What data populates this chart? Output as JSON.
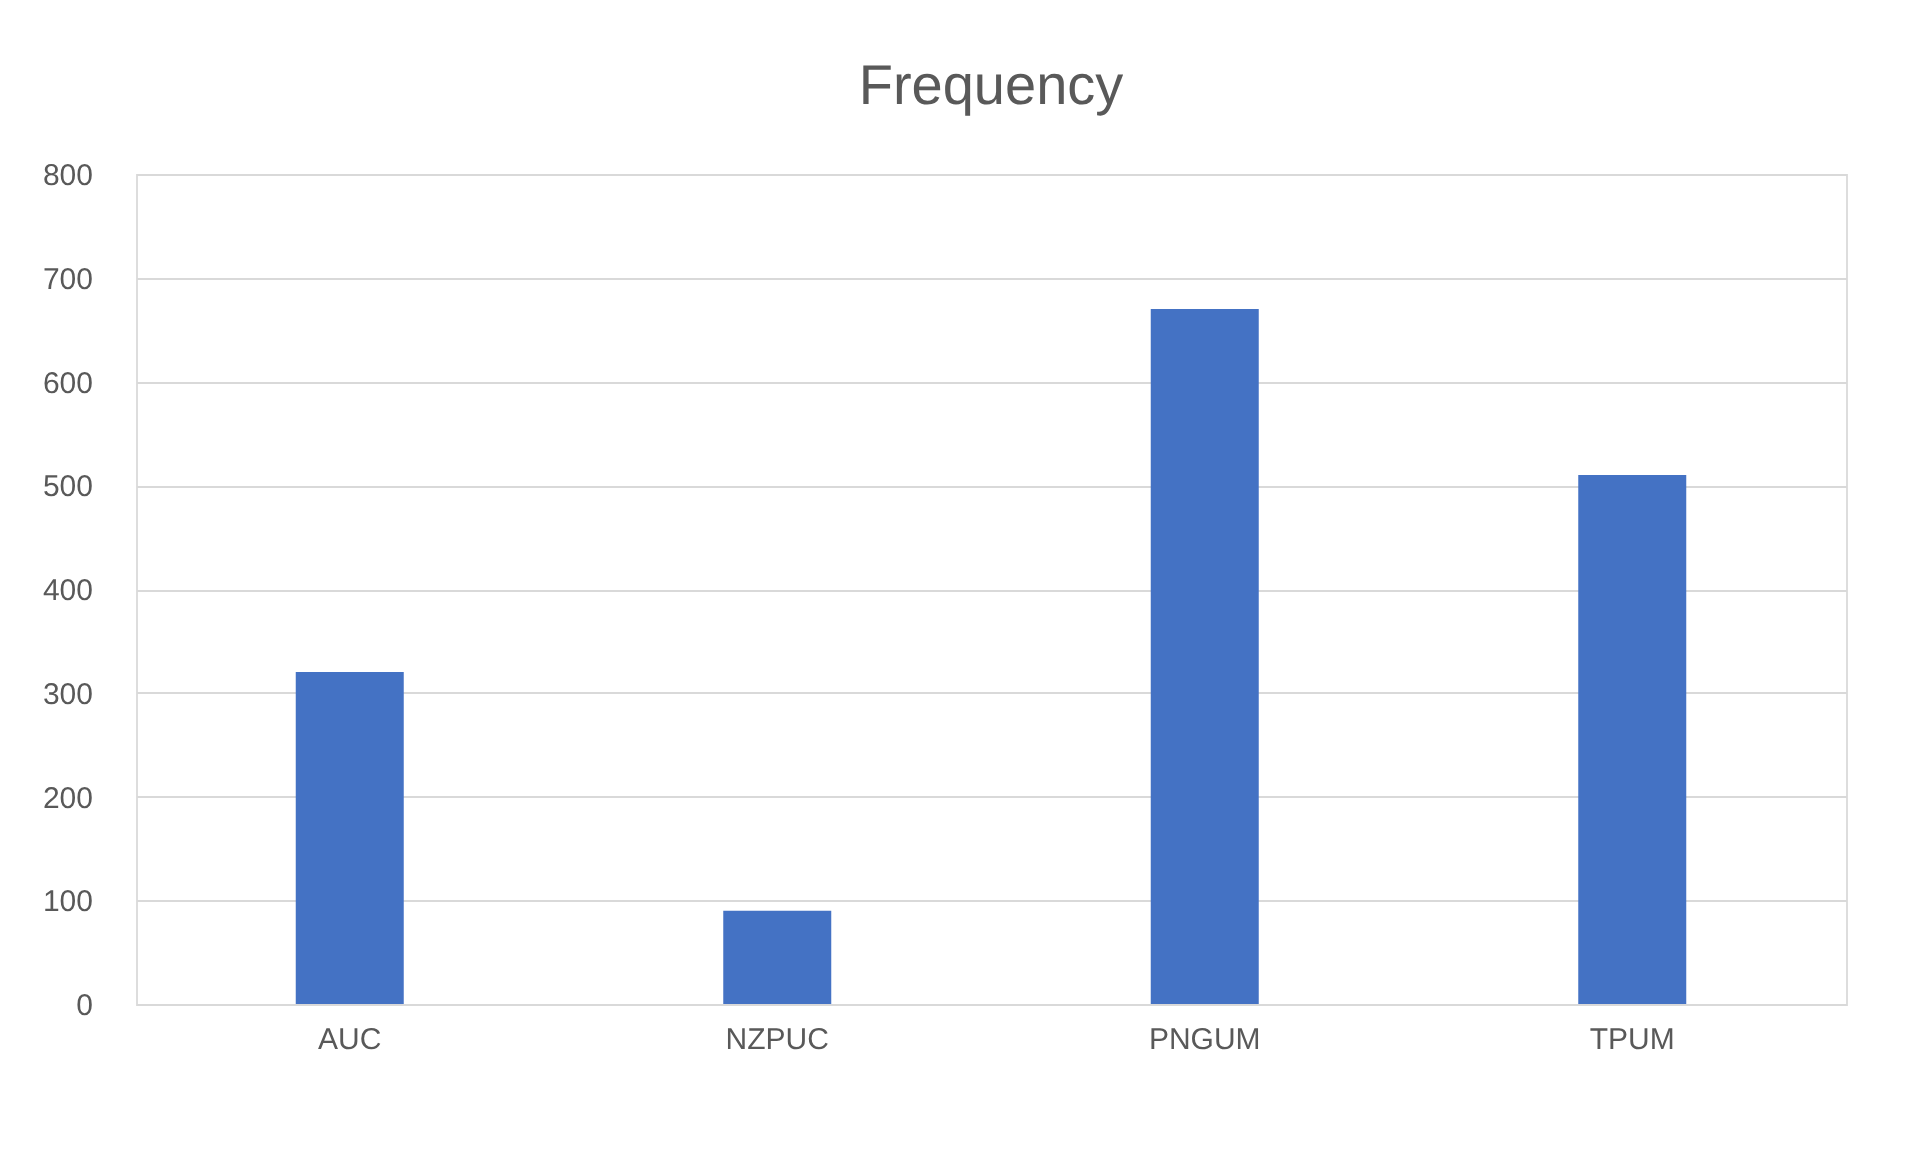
{
  "chart_data": {
    "type": "bar",
    "title": "Frequency",
    "categories": [
      "AUC",
      "NZPUC",
      "PNGUM",
      "TPUM"
    ],
    "values": [
      320,
      90,
      670,
      510
    ],
    "color": "#4472c4",
    "ylim": [
      0,
      800
    ],
    "yticks": [
      0,
      100,
      200,
      300,
      400,
      500,
      600,
      700,
      800
    ],
    "grid": "y"
  }
}
